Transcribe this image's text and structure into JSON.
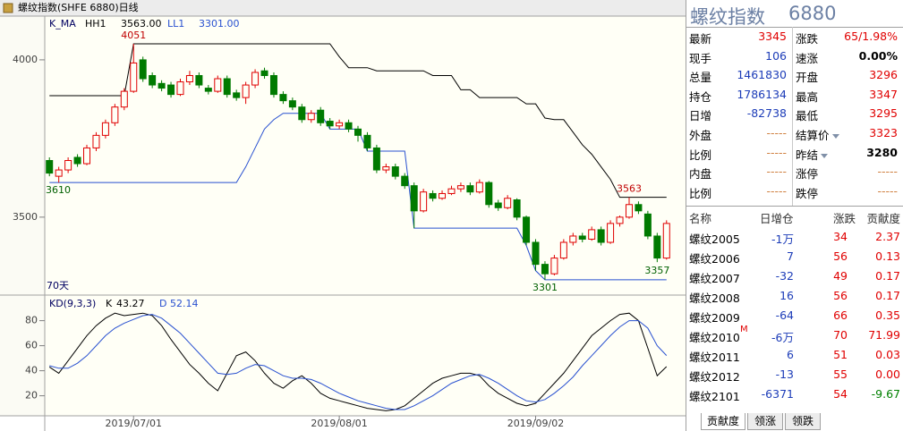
{
  "chart_data": [
    {
      "type": "candlestick",
      "title": "螺纹指数(SHFE 6880)日线",
      "indicator": "K_MA",
      "ylim": [
        3258,
        4139
      ],
      "yticks": [
        3500,
        4000
      ],
      "up_color": "#e00000",
      "down_color": "#007a00",
      "ohlc": [
        [
          3680,
          3690,
          3630,
          3640
        ],
        [
          3630,
          3660,
          3610,
          3650
        ],
        [
          3650,
          3690,
          3640,
          3680
        ],
        [
          3690,
          3700,
          3660,
          3670
        ],
        [
          3670,
          3730,
          3665,
          3720
        ],
        [
          3720,
          3770,
          3710,
          3760
        ],
        [
          3760,
          3810,
          3750,
          3800
        ],
        [
          3800,
          3860,
          3790,
          3850
        ],
        [
          3850,
          3910,
          3840,
          3900
        ],
        [
          3900,
          4051,
          3895,
          3990
        ],
        [
          4000,
          4010,
          3930,
          3940
        ],
        [
          3950,
          3960,
          3910,
          3920
        ],
        [
          3925,
          3935,
          3900,
          3910
        ],
        [
          3920,
          3930,
          3880,
          3890
        ],
        [
          3890,
          3940,
          3885,
          3930
        ],
        [
          3930,
          3965,
          3920,
          3950
        ],
        [
          3950,
          3960,
          3910,
          3920
        ],
        [
          3910,
          3920,
          3890,
          3900
        ],
        [
          3900,
          3950,
          3895,
          3940
        ],
        [
          3940,
          3950,
          3880,
          3890
        ],
        [
          3895,
          3905,
          3870,
          3880
        ],
        [
          3880,
          3930,
          3860,
          3920
        ],
        [
          3920,
          3970,
          3910,
          3960
        ],
        [
          3965,
          3975,
          3940,
          3950
        ],
        [
          3950,
          3960,
          3880,
          3890
        ],
        [
          3890,
          3900,
          3860,
          3870
        ],
        [
          3870,
          3880,
          3840,
          3850
        ],
        [
          3850,
          3860,
          3800,
          3810
        ],
        [
          3810,
          3840,
          3800,
          3830
        ],
        [
          3840,
          3850,
          3790,
          3800
        ],
        [
          3805,
          3815,
          3780,
          3790
        ],
        [
          3790,
          3810,
          3780,
          3800
        ],
        [
          3800,
          3810,
          3770,
          3780
        ],
        [
          3780,
          3790,
          3740,
          3760
        ],
        [
          3760,
          3770,
          3710,
          3720
        ],
        [
          3720,
          3730,
          3640,
          3650
        ],
        [
          3650,
          3670,
          3640,
          3660
        ],
        [
          3660,
          3670,
          3620,
          3630
        ],
        [
          3630,
          3640,
          3590,
          3600
        ],
        [
          3600,
          3610,
          3465,
          3520
        ],
        [
          3520,
          3590,
          3515,
          3580
        ],
        [
          3575,
          3585,
          3550,
          3560
        ],
        [
          3560,
          3585,
          3555,
          3575
        ],
        [
          3575,
          3600,
          3570,
          3590
        ],
        [
          3590,
          3610,
          3580,
          3600
        ],
        [
          3600,
          3610,
          3570,
          3580
        ],
        [
          3580,
          3620,
          3575,
          3610
        ],
        [
          3610,
          3615,
          3530,
          3540
        ],
        [
          3545,
          3555,
          3520,
          3530
        ],
        [
          3530,
          3570,
          3525,
          3560
        ],
        [
          3555,
          3560,
          3490,
          3500
        ],
        [
          3500,
          3505,
          3410,
          3420
        ],
        [
          3420,
          3430,
          3330,
          3350
        ],
        [
          3350,
          3360,
          3301,
          3320
        ],
        [
          3320,
          3380,
          3315,
          3370
        ],
        [
          3370,
          3430,
          3365,
          3420
        ],
        [
          3420,
          3450,
          3410,
          3440
        ],
        [
          3440,
          3450,
          3420,
          3430
        ],
        [
          3430,
          3470,
          3425,
          3460
        ],
        [
          3460,
          3470,
          3410,
          3420
        ],
        [
          3420,
          3490,
          3415,
          3480
        ],
        [
          3480,
          3505,
          3470,
          3500
        ],
        [
          3500,
          3563,
          3495,
          3540
        ],
        [
          3540,
          3550,
          3510,
          3520
        ],
        [
          3510,
          3520,
          3430,
          3440
        ],
        [
          3440,
          3450,
          3357,
          3370
        ],
        [
          3370,
          3490,
          3365,
          3480
        ]
      ],
      "series": [
        {
          "name": "HH1",
          "value_label": "3563.00",
          "color": "#000000",
          "values": [
            3886,
            3886,
            3886,
            3886,
            3886,
            3886,
            3886,
            3886,
            3886,
            4051,
            4051,
            4051,
            4051,
            4051,
            4051,
            4051,
            4051,
            4051,
            4051,
            4051,
            4051,
            4051,
            4051,
            4051,
            4051,
            4051,
            4051,
            4051,
            4051,
            4051,
            4051,
            4010,
            3975,
            3975,
            3975,
            3965,
            3965,
            3965,
            3965,
            3965,
            3965,
            3950,
            3950,
            3950,
            3905,
            3905,
            3880,
            3880,
            3880,
            3880,
            3880,
            3860,
            3860,
            3815,
            3810,
            3810,
            3770,
            3730,
            3700,
            3660,
            3620,
            3563,
            3563,
            3563,
            3563,
            3563,
            3563
          ]
        },
        {
          "name": "LL1",
          "value_label": "3301.00",
          "color": "#2850d0",
          "values": [
            3610,
            3610,
            3610,
            3610,
            3610,
            3610,
            3610,
            3610,
            3610,
            3610,
            3610,
            3610,
            3610,
            3610,
            3610,
            3610,
            3610,
            3610,
            3610,
            3610,
            3610,
            3660,
            3720,
            3780,
            3810,
            3830,
            3830,
            3830,
            3830,
            3830,
            3780,
            3780,
            3780,
            3780,
            3710,
            3710,
            3710,
            3710,
            3710,
            3465,
            3465,
            3465,
            3465,
            3465,
            3465,
            3465,
            3465,
            3465,
            3465,
            3465,
            3465,
            3410,
            3330,
            3301,
            3301,
            3301,
            3301,
            3301,
            3301,
            3301,
            3301,
            3301,
            3301,
            3301,
            3301,
            3301,
            3301
          ]
        }
      ],
      "extreme_labels": [
        4051,
        3610,
        3563,
        3357,
        3301
      ],
      "period_label": "70天"
    },
    {
      "type": "line",
      "title": "KD(9,3,3)",
      "ylim": [
        4,
        99
      ],
      "yticks": [
        20,
        40,
        60,
        80
      ],
      "categories": [
        null,
        null,
        null,
        null,
        null,
        null,
        null,
        null,
        null,
        "2019/07/01",
        null,
        null,
        null,
        null,
        null,
        null,
        null,
        null,
        null,
        null,
        null,
        null,
        null,
        null,
        null,
        null,
        null,
        null,
        null,
        null,
        null,
        "2019/08/01",
        null,
        null,
        null,
        null,
        null,
        null,
        null,
        null,
        null,
        null,
        null,
        null,
        null,
        null,
        null,
        null,
        null,
        null,
        null,
        null,
        "2019/09/02",
        null,
        null,
        null,
        null,
        null,
        null,
        null,
        null,
        null,
        null,
        null,
        null,
        null,
        null
      ],
      "series": [
        {
          "name": "K",
          "value_label": "43.27",
          "color": "#000000",
          "values": [
            43,
            38,
            48,
            58,
            68,
            76,
            82,
            86,
            84,
            85,
            86,
            84,
            76,
            65,
            55,
            45,
            38,
            30,
            24,
            38,
            52,
            55,
            48,
            38,
            30,
            26,
            32,
            36,
            30,
            22,
            18,
            16,
            14,
            12,
            10,
            9,
            8,
            9,
            12,
            18,
            24,
            30,
            34,
            36,
            38,
            38,
            36,
            28,
            22,
            18,
            14,
            12,
            14,
            22,
            30,
            38,
            48,
            58,
            68,
            74,
            80,
            85,
            86,
            80,
            58,
            36,
            43.27
          ]
        },
        {
          "name": "D",
          "value_label": "52.14",
          "color": "#2850d0",
          "values": [
            44,
            42,
            42,
            46,
            52,
            60,
            68,
            74,
            78,
            81,
            84,
            85,
            82,
            76,
            70,
            62,
            54,
            46,
            38,
            37,
            38,
            42,
            45,
            44,
            40,
            36,
            34,
            34,
            33,
            30,
            26,
            22,
            19,
            16,
            14,
            12,
            10,
            9,
            9,
            12,
            16,
            20,
            25,
            30,
            33,
            36,
            37,
            34,
            30,
            25,
            20,
            16,
            15,
            17,
            22,
            28,
            35,
            44,
            52,
            60,
            68,
            75,
            80,
            80,
            74,
            60,
            52.14
          ]
        }
      ]
    }
  ],
  "quote": {
    "title": "螺纹指数",
    "code": "6880",
    "rows": [
      [
        {
          "label": "最新",
          "value": "3345"
        },
        {
          "label": "涨跌",
          "value": "65/1.98%"
        }
      ],
      [
        {
          "label": "现手",
          "value": "106"
        },
        {
          "label": "速涨",
          "value": "0.00%"
        }
      ],
      [
        {
          "label": "总量",
          "value": "1461830"
        },
        {
          "label": "开盘",
          "value": "3296"
        }
      ],
      [
        {
          "label": "持仓",
          "value": "1786134"
        },
        {
          "label": "最高",
          "value": "3347"
        }
      ],
      [
        {
          "label": "日增",
          "value": "-82738"
        },
        {
          "label": "最低",
          "value": "3295"
        }
      ],
      [
        {
          "label": "外盘",
          "value": "-----"
        },
        {
          "label": "结算价",
          "value": "3323"
        }
      ],
      [
        {
          "label": "比例",
          "value": "-----"
        },
        {
          "label": "昨结",
          "value": "3280"
        }
      ],
      [
        {
          "label": "内盘",
          "value": "-----"
        },
        {
          "label": "涨停",
          "value": "-----"
        }
      ],
      [
        {
          "label": "比例",
          "value": "-----"
        },
        {
          "label": "跌停",
          "value": "-----"
        }
      ]
    ]
  },
  "contracts": {
    "columns": [
      "名称",
      "日增仓",
      "涨跌",
      "贡献度"
    ],
    "rows": [
      {
        "cells": [
          "螺纹2005",
          "-1万",
          "34",
          "2.37"
        ]
      },
      {
        "cells": [
          "螺纹2006",
          "7",
          "56",
          "0.13"
        ]
      },
      {
        "cells": [
          "螺纹2007",
          "-32",
          "49",
          "0.17"
        ]
      },
      {
        "cells": [
          "螺纹2008",
          "16",
          "56",
          "0.17"
        ]
      },
      {
        "cells": [
          "螺纹2009",
          "-64",
          "66",
          "0.35"
        ]
      },
      {
        "cells": [
          "螺纹2010",
          "-6万",
          "70",
          "71.99"
        ],
        "tag": "M"
      },
      {
        "cells": [
          "螺纹2011",
          "6",
          "51",
          "0.03"
        ]
      },
      {
        "cells": [
          "螺纹2012",
          "-13",
          "55",
          "0.00"
        ]
      },
      {
        "cells": [
          "螺纹2101",
          "-6371",
          "54",
          "-9.67"
        ]
      }
    ]
  },
  "tabs": [
    "贡献度",
    "领涨",
    "领跌"
  ]
}
